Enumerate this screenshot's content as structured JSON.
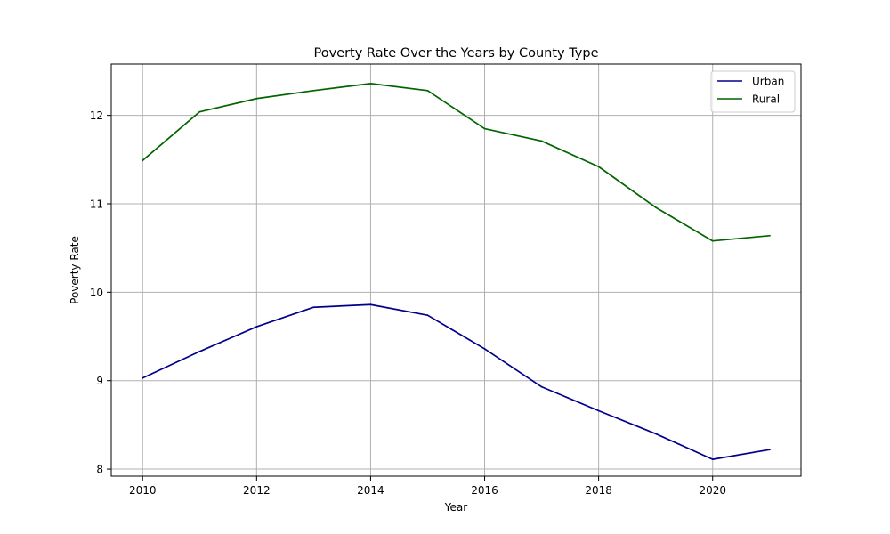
{
  "chart_data": {
    "type": "line",
    "title": "Poverty Rate Over the Years by County Type",
    "xlabel": "Year",
    "ylabel": "Poverty Rate",
    "x": [
      2010,
      2011,
      2012,
      2013,
      2014,
      2015,
      2016,
      2017,
      2018,
      2019,
      2020,
      2021
    ],
    "xlim": [
      2009.45,
      2021.55
    ],
    "ylim": [
      7.92,
      12.58
    ],
    "xticks": [
      "2010",
      "2012",
      "2014",
      "2016",
      "2018",
      "2020"
    ],
    "yticks": [
      "8",
      "9",
      "10",
      "11",
      "12"
    ],
    "grid": true,
    "legend_position": "top-right",
    "series": [
      {
        "name": "Urban",
        "color": "#00008b",
        "values": [
          9.03,
          9.33,
          9.61,
          9.83,
          9.86,
          9.74,
          9.36,
          8.93,
          8.66,
          8.4,
          8.11,
          8.22
        ]
      },
      {
        "name": "Rural",
        "color": "#006400",
        "values": [
          11.49,
          12.04,
          12.19,
          12.28,
          12.36,
          12.28,
          11.85,
          11.71,
          11.42,
          10.96,
          10.58,
          10.64
        ]
      }
    ]
  }
}
